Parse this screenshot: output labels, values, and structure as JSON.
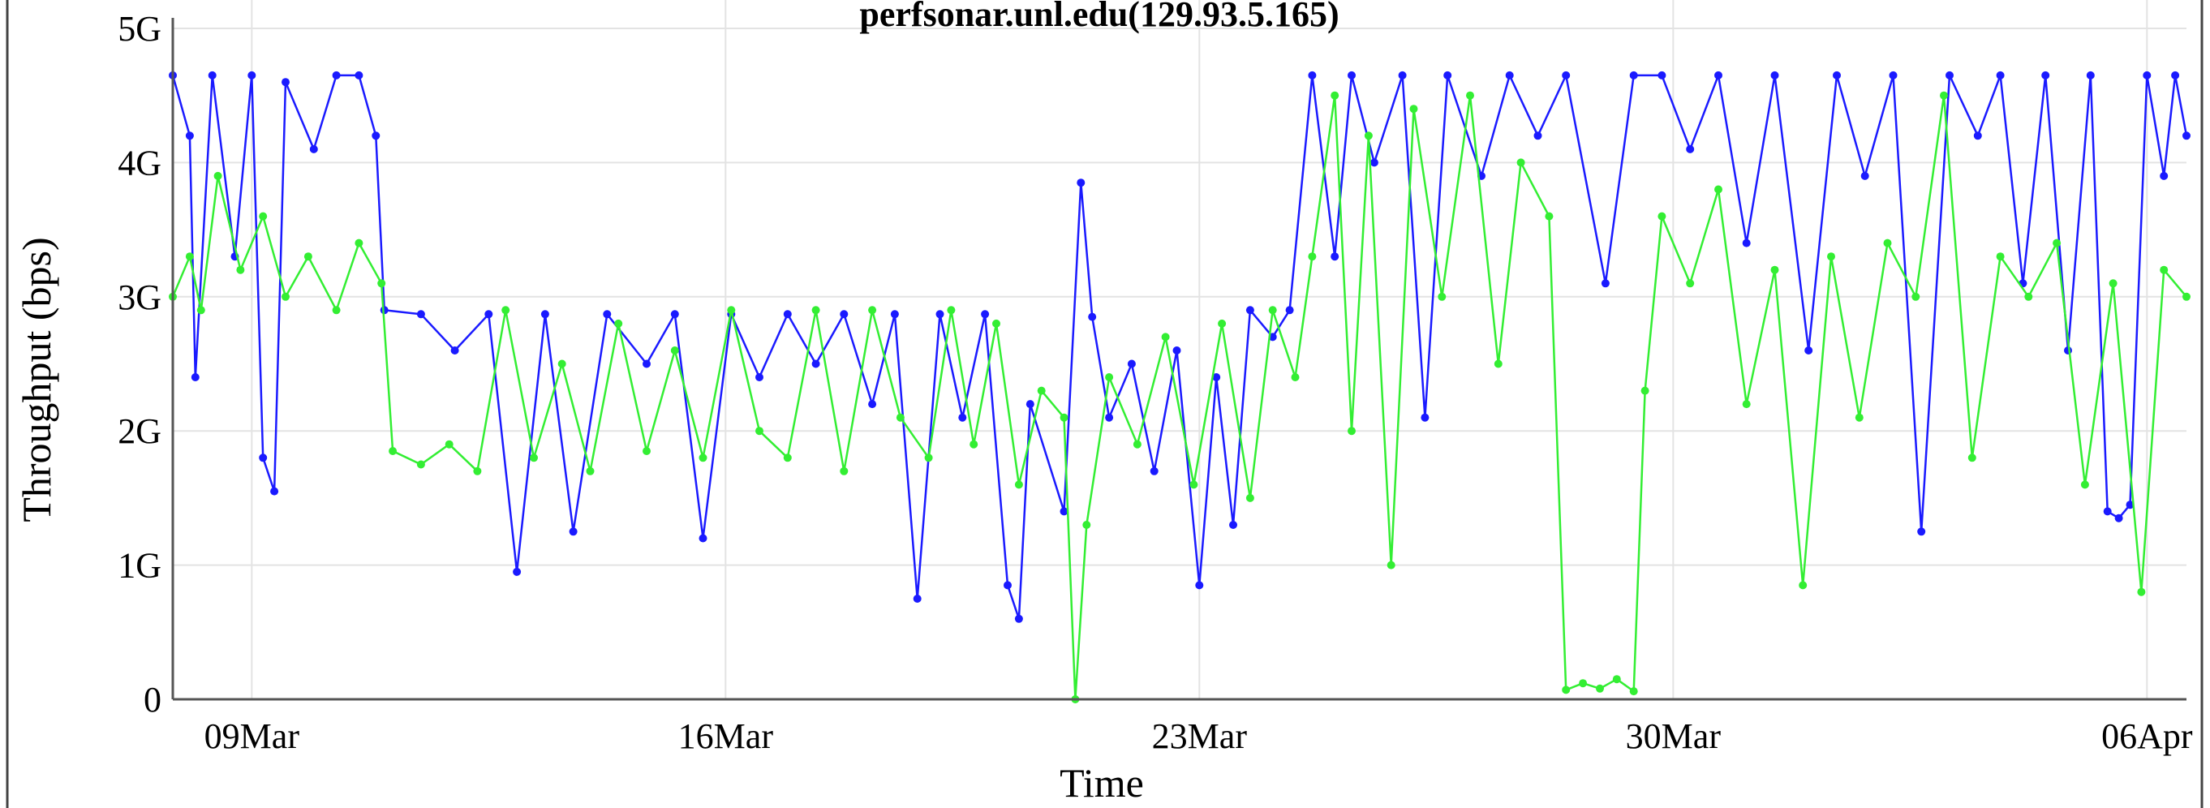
{
  "chart_data": {
    "type": "line",
    "title": "perfsonar.unl.edu(129.93.5.165)",
    "xlabel": "Time",
    "ylabel": "Throughput (bps)",
    "yticks": [
      "0",
      "1G",
      "2G",
      "3G",
      "4G",
      "5G"
    ],
    "ylim": [
      0,
      5000000000
    ],
    "xlim": [
      "2014-03-07T20:00",
      "2014-04-06T14:00"
    ],
    "xticks": [
      {
        "date": "2014-03-09",
        "label": "09Mar"
      },
      {
        "date": "2014-03-16",
        "label": "16Mar"
      },
      {
        "date": "2014-03-23",
        "label": "23Mar"
      },
      {
        "date": "2014-03-30",
        "label": "30Mar"
      },
      {
        "date": "2014-04-06",
        "label": "06Apr"
      }
    ],
    "grid": true,
    "legend": "none",
    "series": [
      {
        "color": "#1a1aff",
        "points": [
          [
            "2014-03-07T20:00",
            4650000000.0
          ],
          [
            "2014-03-08T02:00",
            4200000000.0
          ],
          [
            "2014-03-08T04:00",
            2400000000.0
          ],
          [
            "2014-03-08T10:00",
            4650000000.0
          ],
          [
            "2014-03-08T18:00",
            3300000000.0
          ],
          [
            "2014-03-09T00:00",
            4650000000.0
          ],
          [
            "2014-03-09T04:00",
            1800000000.0
          ],
          [
            "2014-03-09T08:00",
            1550000000.0
          ],
          [
            "2014-03-09T12:00",
            4600000000.0
          ],
          [
            "2014-03-09T22:00",
            4100000000.0
          ],
          [
            "2014-03-10T06:00",
            4650000000.0
          ],
          [
            "2014-03-10T14:00",
            4650000000.0
          ],
          [
            "2014-03-10T20:00",
            4200000000.0
          ],
          [
            "2014-03-10T23:00",
            2900000000.0
          ],
          [
            "2014-03-11T12:00",
            2870000000.0
          ],
          [
            "2014-03-12T00:00",
            2600000000.0
          ],
          [
            "2014-03-12T12:00",
            2870000000.0
          ],
          [
            "2014-03-12T22:00",
            950000000.0
          ],
          [
            "2014-03-13T08:00",
            2870000000.0
          ],
          [
            "2014-03-13T18:00",
            1250000000.0
          ],
          [
            "2014-03-14T06:00",
            2870000000.0
          ],
          [
            "2014-03-14T20:00",
            2500000000.0
          ],
          [
            "2014-03-15T06:00",
            2870000000.0
          ],
          [
            "2014-03-15T16:00",
            1200000000.0
          ],
          [
            "2014-03-16T02:00",
            2870000000.0
          ],
          [
            "2014-03-16T12:00",
            2400000000.0
          ],
          [
            "2014-03-16T22:00",
            2870000000.0
          ],
          [
            "2014-03-17T08:00",
            2500000000.0
          ],
          [
            "2014-03-17T18:00",
            2870000000.0
          ],
          [
            "2014-03-18T04:00",
            2200000000.0
          ],
          [
            "2014-03-18T12:00",
            2870000000.0
          ],
          [
            "2014-03-18T20:00",
            750000000.0
          ],
          [
            "2014-03-19T04:00",
            2870000000.0
          ],
          [
            "2014-03-19T12:00",
            2100000000.0
          ],
          [
            "2014-03-19T20:00",
            2870000000.0
          ],
          [
            "2014-03-20T04:00",
            850000000.0
          ],
          [
            "2014-03-20T08:00",
            600000000.0
          ],
          [
            "2014-03-20T12:00",
            2200000000.0
          ],
          [
            "2014-03-21T00:00",
            1400000000.0
          ],
          [
            "2014-03-21T06:00",
            3850000000.0
          ],
          [
            "2014-03-21T10:00",
            2850000000.0
          ],
          [
            "2014-03-21T16:00",
            2100000000.0
          ],
          [
            "2014-03-22T00:00",
            2500000000.0
          ],
          [
            "2014-03-22T08:00",
            1700000000.0
          ],
          [
            "2014-03-22T16:00",
            2600000000.0
          ],
          [
            "2014-03-23T00:00",
            850000000.0
          ],
          [
            "2014-03-23T06:00",
            2400000000.0
          ],
          [
            "2014-03-23T12:00",
            1300000000.0
          ],
          [
            "2014-03-23T18:00",
            2900000000.0
          ],
          [
            "2014-03-24T02:00",
            2700000000.0
          ],
          [
            "2014-03-24T08:00",
            2900000000.0
          ],
          [
            "2014-03-24T16:00",
            4650000000.0
          ],
          [
            "2014-03-25T00:00",
            3300000000.0
          ],
          [
            "2014-03-25T06:00",
            4650000000.0
          ],
          [
            "2014-03-25T14:00",
            4000000000.0
          ],
          [
            "2014-03-26T00:00",
            4650000000.0
          ],
          [
            "2014-03-26T08:00",
            2100000000.0
          ],
          [
            "2014-03-26T16:00",
            4650000000.0
          ],
          [
            "2014-03-27T04:00",
            3900000000.0
          ],
          [
            "2014-03-27T14:00",
            4650000000.0
          ],
          [
            "2014-03-28T00:00",
            4200000000.0
          ],
          [
            "2014-03-28T10:00",
            4650000000.0
          ],
          [
            "2014-03-29T00:00",
            3100000000.0
          ],
          [
            "2014-03-29T10:00",
            4650000000.0
          ],
          [
            "2014-03-29T20:00",
            4650000000.0
          ],
          [
            "2014-03-30T06:00",
            4100000000.0
          ],
          [
            "2014-03-30T16:00",
            4650000000.0
          ],
          [
            "2014-03-31T02:00",
            3400000000.0
          ],
          [
            "2014-03-31T12:00",
            4650000000.0
          ],
          [
            "2014-04-01T00:00",
            2600000000.0
          ],
          [
            "2014-04-01T10:00",
            4650000000.0
          ],
          [
            "2014-04-01T20:00",
            3900000000.0
          ],
          [
            "2014-04-02T06:00",
            4650000000.0
          ],
          [
            "2014-04-02T16:00",
            1250000000.0
          ],
          [
            "2014-04-03T02:00",
            4650000000.0
          ],
          [
            "2014-04-03T12:00",
            4200000000.0
          ],
          [
            "2014-04-03T20:00",
            4650000000.0
          ],
          [
            "2014-04-04T04:00",
            3100000000.0
          ],
          [
            "2014-04-04T12:00",
            4650000000.0
          ],
          [
            "2014-04-04T20:00",
            2600000000.0
          ],
          [
            "2014-04-05T04:00",
            4650000000.0
          ],
          [
            "2014-04-05T10:00",
            1400000000.0
          ],
          [
            "2014-04-05T14:00",
            1350000000.0
          ],
          [
            "2014-04-05T18:00",
            1450000000.0
          ],
          [
            "2014-04-06T00:00",
            4650000000.0
          ],
          [
            "2014-04-06T06:00",
            3900000000.0
          ],
          [
            "2014-04-06T10:00",
            4650000000.0
          ],
          [
            "2014-04-06T14:00",
            4200000000.0
          ]
        ]
      },
      {
        "color": "#33ee33",
        "points": [
          [
            "2014-03-07T20:00",
            3000000000.0
          ],
          [
            "2014-03-08T02:00",
            3300000000.0
          ],
          [
            "2014-03-08T06:00",
            2900000000.0
          ],
          [
            "2014-03-08T12:00",
            3900000000.0
          ],
          [
            "2014-03-08T20:00",
            3200000000.0
          ],
          [
            "2014-03-09T04:00",
            3600000000.0
          ],
          [
            "2014-03-09T12:00",
            3000000000.0
          ],
          [
            "2014-03-09T20:00",
            3300000000.0
          ],
          [
            "2014-03-10T06:00",
            2900000000.0
          ],
          [
            "2014-03-10T14:00",
            3400000000.0
          ],
          [
            "2014-03-10T22:00",
            3100000000.0
          ],
          [
            "2014-03-11T02:00",
            1850000000.0
          ],
          [
            "2014-03-11T12:00",
            1750000000.0
          ],
          [
            "2014-03-11T22:00",
            1900000000.0
          ],
          [
            "2014-03-12T08:00",
            1700000000.0
          ],
          [
            "2014-03-12T18:00",
            2900000000.0
          ],
          [
            "2014-03-13T04:00",
            1800000000.0
          ],
          [
            "2014-03-13T14:00",
            2500000000.0
          ],
          [
            "2014-03-14T00:00",
            1700000000.0
          ],
          [
            "2014-03-14T10:00",
            2800000000.0
          ],
          [
            "2014-03-14T20:00",
            1850000000.0
          ],
          [
            "2014-03-15T06:00",
            2600000000.0
          ],
          [
            "2014-03-15T16:00",
            1800000000.0
          ],
          [
            "2014-03-16T02:00",
            2900000000.0
          ],
          [
            "2014-03-16T12:00",
            2000000000.0
          ],
          [
            "2014-03-16T22:00",
            1800000000.0
          ],
          [
            "2014-03-17T08:00",
            2900000000.0
          ],
          [
            "2014-03-17T18:00",
            1700000000.0
          ],
          [
            "2014-03-18T04:00",
            2900000000.0
          ],
          [
            "2014-03-18T14:00",
            2100000000.0
          ],
          [
            "2014-03-19T00:00",
            1800000000.0
          ],
          [
            "2014-03-19T08:00",
            2900000000.0
          ],
          [
            "2014-03-19T16:00",
            1900000000.0
          ],
          [
            "2014-03-20T00:00",
            2800000000.0
          ],
          [
            "2014-03-20T08:00",
            1600000000.0
          ],
          [
            "2014-03-20T16:00",
            2300000000.0
          ],
          [
            "2014-03-21T00:00",
            2100000000.0
          ],
          [
            "2014-03-21T04:00",
            0.0
          ],
          [
            "2014-03-21T08:00",
            1300000000.0
          ],
          [
            "2014-03-21T16:00",
            2400000000.0
          ],
          [
            "2014-03-22T02:00",
            1900000000.0
          ],
          [
            "2014-03-22T12:00",
            2700000000.0
          ],
          [
            "2014-03-22T22:00",
            1600000000.0
          ],
          [
            "2014-03-23T08:00",
            2800000000.0
          ],
          [
            "2014-03-23T18:00",
            1500000000.0
          ],
          [
            "2014-03-24T02:00",
            2900000000.0
          ],
          [
            "2014-03-24T10:00",
            2400000000.0
          ],
          [
            "2014-03-24T16:00",
            3300000000.0
          ],
          [
            "2014-03-25T00:00",
            4500000000.0
          ],
          [
            "2014-03-25T06:00",
            2000000000.0
          ],
          [
            "2014-03-25T12:00",
            4200000000.0
          ],
          [
            "2014-03-25T20:00",
            1000000000.0
          ],
          [
            "2014-03-26T04:00",
            4400000000.0
          ],
          [
            "2014-03-26T14:00",
            3000000000.0
          ],
          [
            "2014-03-27T00:00",
            4500000000.0
          ],
          [
            "2014-03-27T10:00",
            2500000000.0
          ],
          [
            "2014-03-27T18:00",
            4000000000.0
          ],
          [
            "2014-03-28T04:00",
            3600000000.0
          ],
          [
            "2014-03-28T10:00",
            70000000.0
          ],
          [
            "2014-03-28T16:00",
            120000000.0
          ],
          [
            "2014-03-28T22:00",
            80000000.0
          ],
          [
            "2014-03-29T04:00",
            150000000.0
          ],
          [
            "2014-03-29T10:00",
            60000000.0
          ],
          [
            "2014-03-29T14:00",
            2300000000.0
          ],
          [
            "2014-03-29T20:00",
            3600000000.0
          ],
          [
            "2014-03-30T06:00",
            3100000000.0
          ],
          [
            "2014-03-30T16:00",
            3800000000.0
          ],
          [
            "2014-03-31T02:00",
            2200000000.0
          ],
          [
            "2014-03-31T12:00",
            3200000000.0
          ],
          [
            "2014-03-31T22:00",
            850000000.0
          ],
          [
            "2014-04-01T08:00",
            3300000000.0
          ],
          [
            "2014-04-01T18:00",
            2100000000.0
          ],
          [
            "2014-04-02T04:00",
            3400000000.0
          ],
          [
            "2014-04-02T14:00",
            3000000000.0
          ],
          [
            "2014-04-03T00:00",
            4500000000.0
          ],
          [
            "2014-04-03T10:00",
            1800000000.0
          ],
          [
            "2014-04-03T20:00",
            3300000000.0
          ],
          [
            "2014-04-04T06:00",
            3000000000.0
          ],
          [
            "2014-04-04T16:00",
            3400000000.0
          ],
          [
            "2014-04-05T02:00",
            1600000000.0
          ],
          [
            "2014-04-05T12:00",
            3100000000.0
          ],
          [
            "2014-04-05T22:00",
            800000000.0
          ],
          [
            "2014-04-06T06:00",
            3200000000.0
          ],
          [
            "2014-04-06T14:00",
            3000000000.0
          ]
        ]
      }
    ]
  }
}
